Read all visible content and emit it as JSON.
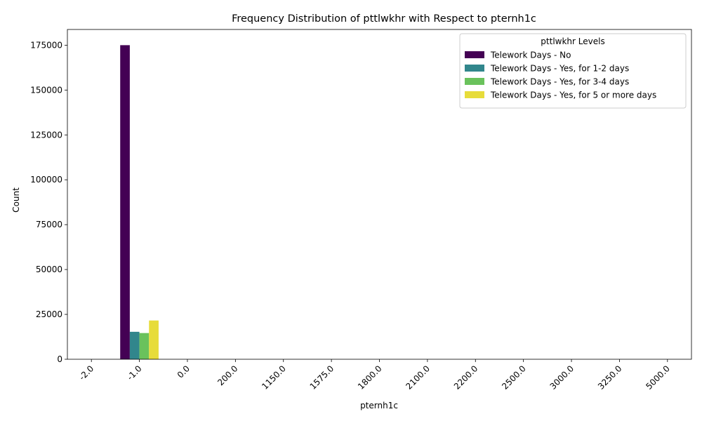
{
  "chart_data": {
    "type": "bar",
    "title": "Frequency Distribution of pttlwkhr with Respect to pternh1c",
    "xlabel": "pternh1c",
    "ylabel": "Count",
    "categories": [
      "-2.0",
      "-1.0",
      "0.0",
      "200.0",
      "1150.0",
      "1575.0",
      "1800.0",
      "2100.0",
      "2200.0",
      "2500.0",
      "3000.0",
      "3250.0",
      "5000.0"
    ],
    "ylim": [
      0,
      183750
    ],
    "yticks": [
      0,
      25000,
      50000,
      75000,
      100000,
      125000,
      150000,
      175000
    ],
    "legend": {
      "title": "pttlwkhr Levels",
      "placement": "top-right"
    },
    "series": [
      {
        "name": "Telework Days - No",
        "color": "#440154",
        "values": [
          0,
          175000,
          0,
          0,
          0,
          0,
          0,
          0,
          0,
          0,
          0,
          0,
          0
        ]
      },
      {
        "name": "Telework Days - Yes, for 1-2 days",
        "color": "#31868c",
        "values": [
          0,
          15300,
          0,
          0,
          0,
          0,
          0,
          0,
          0,
          0,
          0,
          0,
          0
        ]
      },
      {
        "name": "Telework Days - Yes, for 3-4 days",
        "color": "#6ac25c",
        "values": [
          0,
          14600,
          0,
          0,
          0,
          0,
          0,
          0,
          0,
          0,
          0,
          0,
          0
        ]
      },
      {
        "name": "Telework Days - Yes, for 5 or more days",
        "color": "#e7dc3a",
        "values": [
          0,
          21600,
          0,
          0,
          0,
          0,
          0,
          0,
          0,
          0,
          0,
          0,
          0
        ]
      }
    ]
  }
}
